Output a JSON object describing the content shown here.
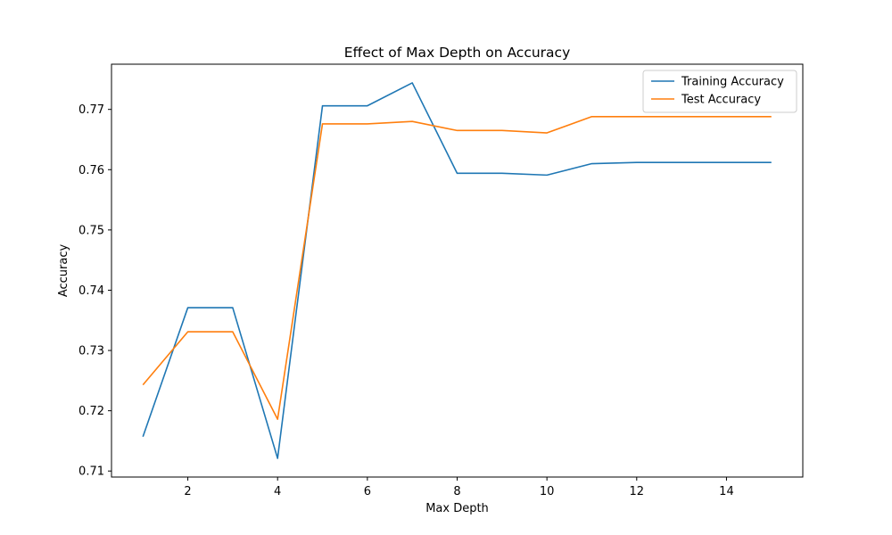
{
  "chart_data": {
    "type": "line",
    "title": "Effect of Max Depth on Accuracy",
    "xlabel": "Max Depth",
    "ylabel": "Accuracy",
    "x": [
      1,
      2,
      3,
      4,
      5,
      6,
      7,
      8,
      9,
      10,
      11,
      12,
      13,
      14,
      15
    ],
    "series": [
      {
        "name": "Training Accuracy",
        "color": "#1f77b4",
        "values": [
          0.7157,
          0.7371,
          0.7371,
          0.7121,
          0.7706,
          0.7706,
          0.7744,
          0.7594,
          0.7594,
          0.7591,
          0.761,
          0.7612,
          0.7612,
          0.7612,
          0.7612
        ]
      },
      {
        "name": "Test Accuracy",
        "color": "#ff7f0e",
        "values": [
          0.7243,
          0.7331,
          0.7331,
          0.7186,
          0.7676,
          0.7676,
          0.768,
          0.7665,
          0.7665,
          0.7661,
          0.7688,
          0.7688,
          0.7688,
          0.7688,
          0.7688
        ]
      }
    ],
    "xlim": [
      0.3,
      15.7
    ],
    "ylim": [
      0.709,
      0.7775
    ],
    "xticks": [
      2,
      4,
      6,
      8,
      10,
      12,
      14
    ],
    "yticks": [
      0.71,
      0.72,
      0.73,
      0.74,
      0.75,
      0.76,
      0.77
    ],
    "xtick_labels": [
      "2",
      "4",
      "6",
      "8",
      "10",
      "12",
      "14"
    ],
    "ytick_labels": [
      "0.71",
      "0.72",
      "0.73",
      "0.74",
      "0.75",
      "0.76",
      "0.77"
    ],
    "grid": false,
    "legend_position": "top-right"
  }
}
